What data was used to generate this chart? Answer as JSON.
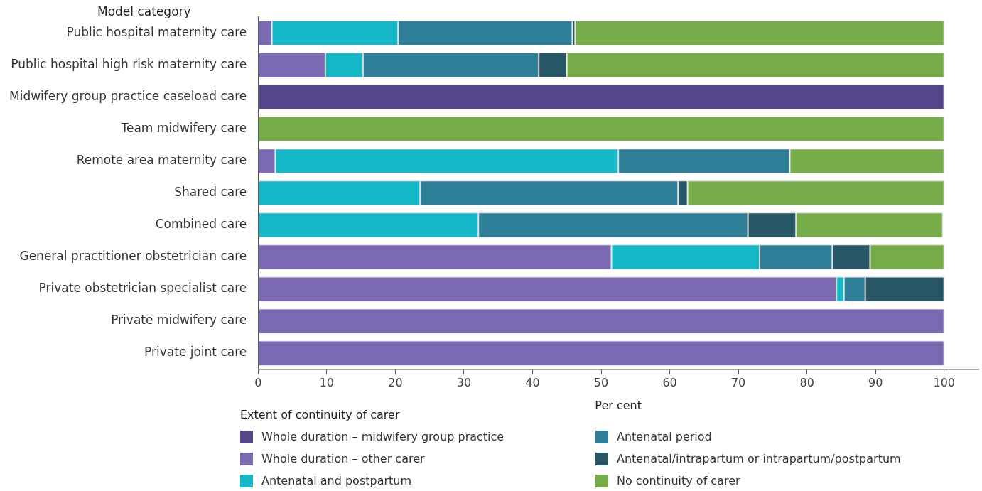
{
  "chart_data": {
    "type": "bar",
    "orientation": "horizontal",
    "stacked": true,
    "ylabel": "Model category",
    "xlabel": "Per cent",
    "legend_title": "Extent of continuity of carer",
    "legend": "bottom",
    "grid": false,
    "categories": [
      "Public hospital maternity care",
      "Public hospital high risk maternity care",
      "Midwifery group practice caseload care",
      "Team midwifery care",
      "Remote area maternity care",
      "Shared care",
      "Combined care",
      "General practitioner obstetrician care",
      "Private obstetrician specialist care",
      "Private midwifery care",
      "Private joint care"
    ],
    "xlim": [
      0,
      105
    ],
    "xticks": [
      0,
      10,
      20,
      30,
      40,
      50,
      60,
      70,
      80,
      90,
      100
    ],
    "series": [
      {
        "name": "Whole duration – midwifery group practice",
        "color": "#56468a",
        "values": [
          0,
          0,
          100,
          0,
          0,
          0,
          0,
          0,
          0,
          0,
          0
        ]
      },
      {
        "name": "Whole duration – other carer",
        "color": "#7b69b3",
        "values": [
          2,
          9.8,
          0,
          0,
          2.5,
          0,
          0,
          51.5,
          84.3,
          100,
          100
        ]
      },
      {
        "name": "Antenatal and postpartum",
        "color": "#14b8c6",
        "values": [
          18.4,
          5.5,
          0,
          0,
          50,
          23.6,
          32.1,
          21.6,
          1.1,
          0,
          0
        ]
      },
      {
        "name": "Antenatal period",
        "color": "#2e7e98",
        "values": [
          25.4,
          25.6,
          0,
          0,
          25,
          37.6,
          39.3,
          10.6,
          3.1,
          0,
          0
        ]
      },
      {
        "name": "Antenatal/intrapartum or intrapartum/postpartum",
        "color": "#275666",
        "values": [
          0.4,
          4.1,
          0,
          0,
          0,
          1.4,
          7,
          5.5,
          11.5,
          0,
          0
        ]
      },
      {
        "name": "No continuity of carer",
        "color": "#76ac48",
        "values": [
          53.8,
          55,
          0,
          100,
          22.5,
          37.4,
          21.4,
          10.8,
          0,
          0,
          0
        ]
      }
    ]
  }
}
